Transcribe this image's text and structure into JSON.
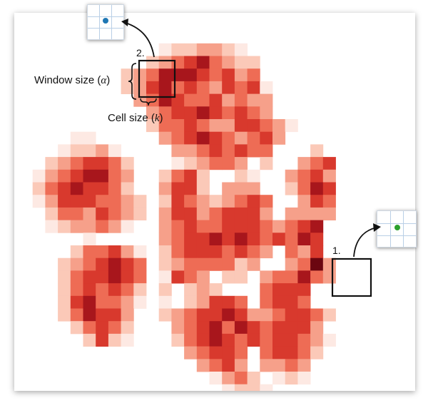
{
  "labels": {
    "window_size_prefix": "Window size (",
    "window_size_symbol": "α",
    "window_size_suffix": ")",
    "cell_size_prefix": "Cell size (",
    "cell_size_symbol": "k",
    "cell_size_suffix": ")",
    "step_one": "1.",
    "step_two": "2."
  },
  "colors": {
    "level_1": "#fde9e3",
    "level_2": "#fbc9b8",
    "level_3": "#f6a08a",
    "level_4": "#ee6c55",
    "level_5": "#d8392d",
    "level_6": "#a8161c",
    "level_7": "#6b0610",
    "inset_dot_blue": "#1f77b4",
    "inset_dot_green": "#2ca02c",
    "inset_grid": "#b9cfe6",
    "outline": "#111111"
  },
  "chart_data": {
    "type": "heatmap",
    "cell_size_label": "k",
    "window_size_label": "α",
    "grid_rows": [
      "..........................",
      "..........................",
      "..........................",
      "..........................",
      "...........1223321........",
      "..........234564322.......",
      "........23466654534.......",
      "........235645435451......",
      ".........34654453433......",
      "..........3455654543......",
      "..........244543355431....",
      "....11.....3456543453.....",
      "...12231....33454544...2..",
      "..2345542...123443.2..345.",
      ".13456643..2452..21..3453.",
      ".24565542..3552.333..2465.",
      ".135554432.254323454..354.",
      "..24435432.355345553.3333.",
      "..1233431..3454455543456..",
      ".....1.....3455656545465..",
      "....244531.245554543.435..",
      "...2345654.23444423..3473.",
      "...2455654.1543.22.344643.",
      "...2454542.2.232...4555...",
      "...2564431.1.23554.4554...",
      "...246553..23455653345542.",
      "....24542...345646545553..",
      ".....2521...2456545455431.",
      ".............34554.45542..",
      "..............3453.3343...",
      "...............1342.121...",
      "................1221......"
    ]
  },
  "highlights": [
    {
      "step": "2.",
      "inset_dot": "blue"
    },
    {
      "step": "1.",
      "inset_dot": "green"
    }
  ]
}
